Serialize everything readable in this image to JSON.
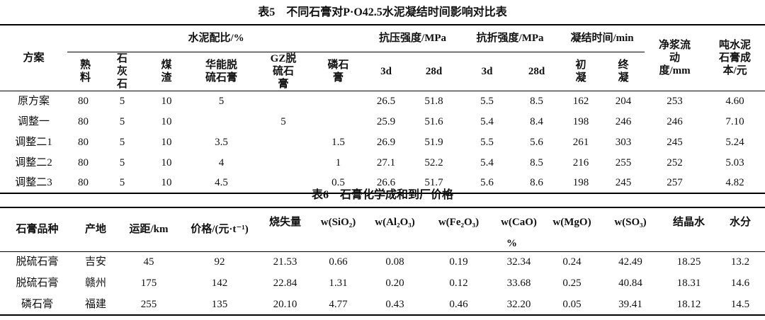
{
  "table5": {
    "title": "表5　不同石膏对P·O42.5水泥凝结时间影响对比表",
    "header": {
      "lead": "方案",
      "groups": [
        {
          "label": "水泥配比/%",
          "columns": [
            "熟料",
            "石灰石",
            "煤渣",
            "华能脱硫石膏",
            "GZ脱硫石膏",
            "磷石膏"
          ]
        },
        {
          "label": "抗压强度/MPa",
          "columns": [
            "3d",
            "28d"
          ]
        },
        {
          "label": "抗折强度/MPa",
          "columns": [
            "3d",
            "28d"
          ]
        },
        {
          "label": "凝结时间/min",
          "columns": [
            "初凝",
            "终凝"
          ]
        }
      ],
      "tail": [
        "净浆流动度/mm",
        "吨水泥石膏成本/元"
      ]
    },
    "rows": [
      [
        "原方案",
        "80",
        "5",
        "10",
        "5",
        null,
        null,
        "26.5",
        "51.8",
        "5.5",
        "8.5",
        "162",
        "204",
        "253",
        "4.60"
      ],
      [
        "调整一",
        "80",
        "5",
        "10",
        null,
        "5",
        null,
        "25.9",
        "51.6",
        "5.4",
        "8.4",
        "198",
        "246",
        "246",
        "7.10"
      ],
      [
        "调整二1",
        "80",
        "5",
        "10",
        "3.5",
        null,
        "1.5",
        "26.9",
        "51.9",
        "5.5",
        "5.6",
        "261",
        "303",
        "245",
        "5.24"
      ],
      [
        "调整二2",
        "80",
        "5",
        "10",
        "4",
        null,
        "1",
        "27.1",
        "52.2",
        "5.4",
        "8.5",
        "216",
        "255",
        "252",
        "5.03"
      ],
      [
        "调整二3",
        "80",
        "5",
        "10",
        "4.5",
        null,
        "0.5",
        "26.6",
        "51.7",
        "5.6",
        "8.6",
        "198",
        "245",
        "257",
        "4.82"
      ]
    ]
  },
  "table6": {
    "title": "表6　石膏化学成和到厂价格",
    "header": [
      "石膏品种",
      "产地",
      "运距/km",
      "价格/(元·t⁻¹)",
      "烧失量",
      "w(SiO₂)",
      "w(Al₂O₃)",
      "w(Fe₂O₃)",
      "w(CaO)",
      "w(MgO)",
      "w(SO₃)",
      "结晶水",
      "水分"
    ],
    "unit": "%",
    "rows": [
      [
        "脱硫石膏",
        "吉安",
        "45",
        "92",
        "21.53",
        "0.66",
        "0.08",
        "0.19",
        "32.34",
        "0.24",
        "42.49",
        "18.25",
        "13.2"
      ],
      [
        "脱硫石膏",
        "赣州",
        "175",
        "142",
        "22.84",
        "1.31",
        "0.20",
        "0.12",
        "33.68",
        "0.25",
        "40.84",
        "18.31",
        "14.6"
      ],
      [
        "磷石膏",
        "福建",
        "255",
        "135",
        "20.10",
        "4.77",
        "0.43",
        "0.46",
        "32.20",
        "0.05",
        "39.41",
        "18.12",
        "14.5"
      ]
    ]
  }
}
